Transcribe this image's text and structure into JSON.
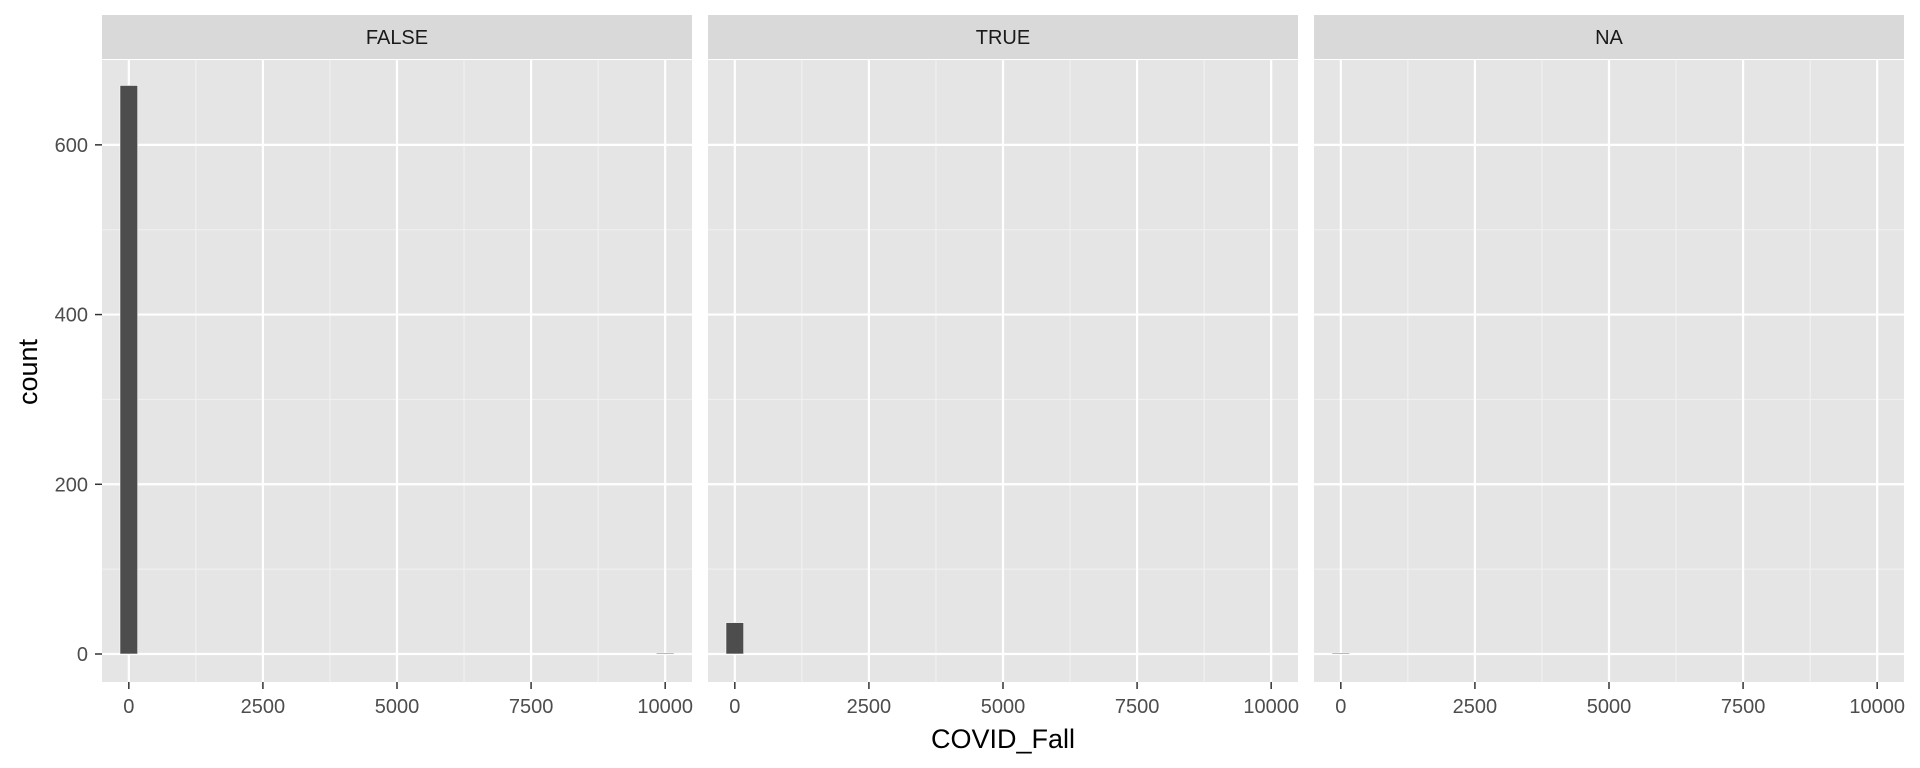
{
  "chart_data": {
    "type": "bar",
    "subtype": "histogram",
    "facet_variable_values": [
      "FALSE",
      "TRUE",
      "NA"
    ],
    "xlabel": "COVID_Fall",
    "ylabel": "count",
    "xlim": [
      -500,
      10500
    ],
    "ylim": [
      -33,
      700
    ],
    "x_ticks": [
      0,
      2500,
      5000,
      7500,
      10000
    ],
    "y_ticks": [
      0,
      200,
      400,
      600
    ],
    "grid": true,
    "bar_color": "#4d4d4d",
    "panel_background": "#e5e5e5",
    "strip_background": "#d9d9d9",
    "panels": [
      {
        "label": "FALSE",
        "bins": [
          {
            "x": 0,
            "count": 670
          },
          {
            "x": 10000,
            "count": 1
          }
        ]
      },
      {
        "label": "TRUE",
        "bins": [
          {
            "x": 0,
            "count": 37
          }
        ]
      },
      {
        "label": "NA",
        "bins": [
          {
            "x": 0,
            "count": 1
          }
        ]
      }
    ]
  }
}
